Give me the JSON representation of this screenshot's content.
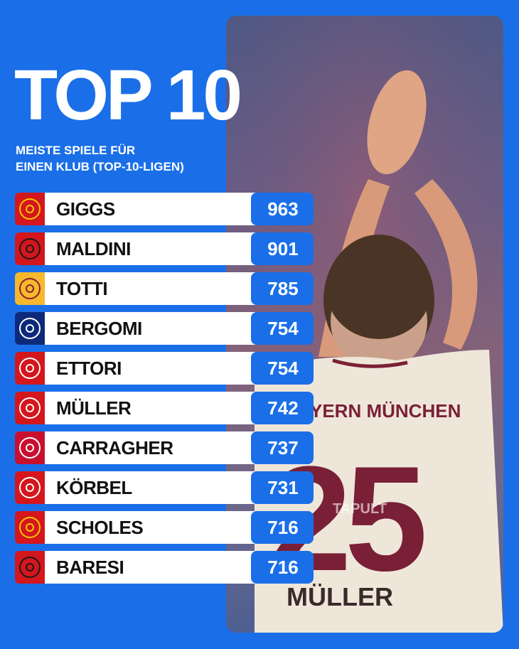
{
  "header": {
    "title": "TOP 10",
    "subtitle_line1": "MEISTE SPIELE FÜR",
    "subtitle_line2": "EINEN KLUB (TOP-10-LIGEN)"
  },
  "photo": {
    "jersey_text": "YERN MÜNCHEN",
    "jersey_number": "25",
    "jersey_name": "MÜLLER",
    "jersey_sponsor": "TAPULT"
  },
  "colors": {
    "background": "#1a6fe8",
    "value_box": "#1a6fe8",
    "row_background": "#ffffff"
  },
  "ranking": [
    {
      "name": "GIGGS",
      "value": "963",
      "club_icon": "manchester-united-crest-icon",
      "logo_bg": "#d4161d",
      "logo_color": "#f6c600"
    },
    {
      "name": "MALDINI",
      "value": "901",
      "club_icon": "ac-milan-crest-icon",
      "logo_bg": "#d4161d",
      "logo_color": "#1a1a1a"
    },
    {
      "name": "TOTTI",
      "value": "785",
      "club_icon": "as-roma-crest-icon",
      "logo_bg": "#f5b82e",
      "logo_color": "#8e1f2f"
    },
    {
      "name": "BERGOMI",
      "value": "754",
      "club_icon": "inter-milan-crest-icon",
      "logo_bg": "#0d2a7a",
      "logo_color": "#ffffff"
    },
    {
      "name": "ETTORI",
      "value": "754",
      "club_icon": "as-monaco-crest-icon",
      "logo_bg": "#d4161d",
      "logo_color": "#ffffff"
    },
    {
      "name": "MÜLLER",
      "value": "742",
      "club_icon": "bayern-munich-crest-icon",
      "logo_bg": "#d4161d",
      "logo_color": "#ffffff"
    },
    {
      "name": "CARRAGHER",
      "value": "737",
      "club_icon": "liverpool-crest-icon",
      "logo_bg": "#c8102e",
      "logo_color": "#ffffff"
    },
    {
      "name": "KÖRBEL",
      "value": "731",
      "club_icon": "eintracht-frankfurt-crest-icon",
      "logo_bg": "#d4161d",
      "logo_color": "#ffffff"
    },
    {
      "name": "SCHOLES",
      "value": "716",
      "club_icon": "manchester-united-crest-icon",
      "logo_bg": "#d4161d",
      "logo_color": "#f6c600"
    },
    {
      "name": "BARESI",
      "value": "716",
      "club_icon": "ac-milan-crest-icon",
      "logo_bg": "#d4161d",
      "logo_color": "#1a1a1a"
    }
  ]
}
